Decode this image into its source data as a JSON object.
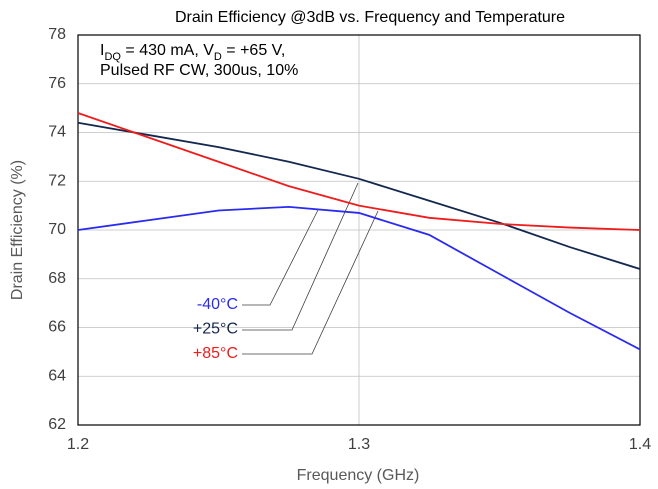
{
  "chart_data": {
    "type": "line",
    "title": "Drain Efficiency @3dB vs. Frequency and Temperature",
    "xlabel": "Frequency (GHz)",
    "ylabel": "Drain Efficiency (%)",
    "annotation": {
      "line1": [
        {
          "text": "I"
        },
        {
          "text": "DQ",
          "sub": true
        },
        {
          "text": " = 430 mA, V"
        },
        {
          "text": "D",
          "sub": true
        },
        {
          "text": " = +65 V,"
        }
      ],
      "line2": "Pulsed RF CW, 300us, 10%"
    },
    "x": [
      1.2,
      1.225,
      1.25,
      1.275,
      1.3,
      1.325,
      1.35,
      1.375,
      1.4
    ],
    "series": [
      {
        "name": "-40°C",
        "color": "#2b2bef",
        "values": [
          70.0,
          70.4,
          70.8,
          70.95,
          70.7,
          69.8,
          68.2,
          66.6,
          65.1
        ]
      },
      {
        "name": "+25°C",
        "color": "#14284f",
        "values": [
          74.4,
          73.9,
          73.4,
          72.8,
          72.1,
          71.2,
          70.3,
          69.3,
          68.4
        ]
      },
      {
        "name": "+85°C",
        "color": "#ee1c1c",
        "values": [
          74.8,
          73.8,
          72.8,
          71.8,
          71.0,
          70.5,
          70.25,
          70.1,
          70.0
        ]
      }
    ],
    "xlim": [
      1.2,
      1.4
    ],
    "xticks": [
      {
        "value": 1.2,
        "label": "1.2"
      },
      {
        "value": 1.3,
        "label": "1.3"
      },
      {
        "value": 1.4,
        "label": "1.4"
      }
    ],
    "ylim": [
      62,
      78
    ],
    "yticks": [
      62,
      64,
      66,
      68,
      70,
      72,
      74,
      76,
      78
    ],
    "grid": true
  }
}
